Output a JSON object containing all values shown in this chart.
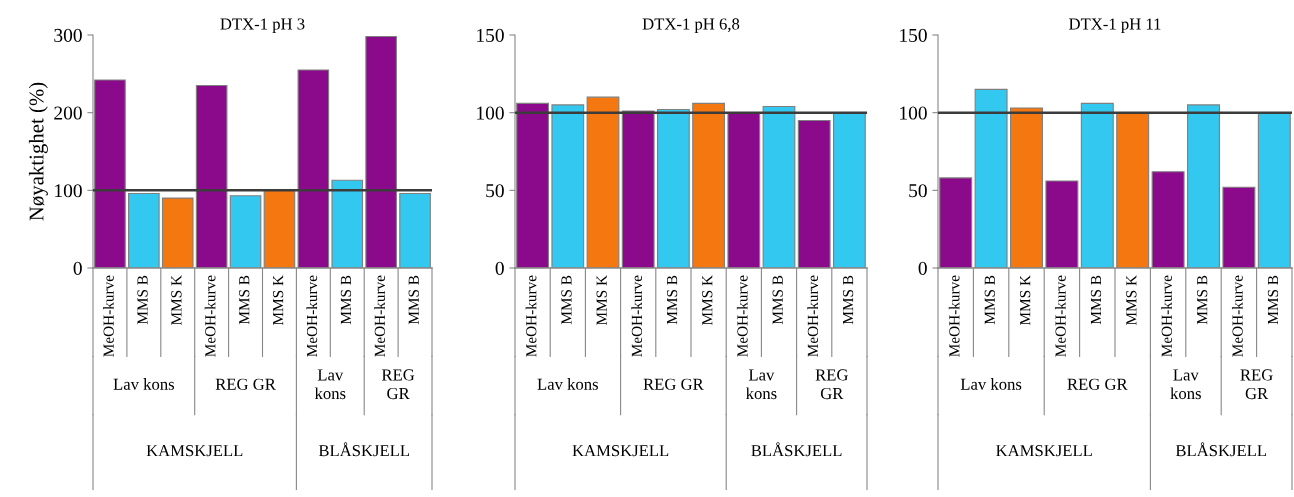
{
  "chart_data": [
    {
      "type": "bar",
      "title": "DTX-1 pH 3",
      "ylabel": "Nøyaktighet (%)",
      "categories": [
        "MeOH-kurve",
        "MMS B",
        "MMS K",
        "MeOH-kurve",
        "MMS B",
        "MMS K",
        "MeOH-kurve",
        "MMS B",
        "MeOH-kurve",
        "MMS B"
      ],
      "values": [
        242,
        96,
        90,
        235,
        93,
        100,
        255,
        113,
        298,
        96
      ],
      "colors": [
        "#8b0a8b",
        "#33c8f0",
        "#f5770f",
        "#8b0a8b",
        "#33c8f0",
        "#f5770f",
        "#8b0a8b",
        "#33c8f0",
        "#8b0a8b",
        "#33c8f0"
      ],
      "ylim": [
        0,
        300
      ],
      "yticks": [
        0,
        100,
        200,
        300
      ],
      "ref_lines": [
        {
          "axis": "y",
          "value": 100,
          "color": "#3c3c3c"
        }
      ],
      "annotations": [
        "Lav kons",
        "REG GR",
        "Lav\nkons",
        "REG\nGR",
        "KAMSKJELL",
        "BLÅSKJELL"
      ]
    },
    {
      "type": "bar",
      "title": "DTX-1 pH 6,8",
      "categories": [
        "MeOH-kurve",
        "MMS B",
        "MMS K",
        "MeOH-kurve",
        "MMS B",
        "MMS K",
        "MeOH-kurve",
        "MMS B",
        "MeOH-kurve",
        "MMS B"
      ],
      "values": [
        106,
        105,
        110,
        101,
        102,
        106,
        100,
        104,
        95,
        100
      ],
      "colors": [
        "#8b0a8b",
        "#33c8f0",
        "#f5770f",
        "#8b0a8b",
        "#33c8f0",
        "#f5770f",
        "#8b0a8b",
        "#33c8f0",
        "#8b0a8b",
        "#33c8f0"
      ],
      "ylim": [
        0,
        150
      ],
      "yticks": [
        0,
        50,
        100,
        150
      ],
      "ref_lines": [
        {
          "axis": "y",
          "value": 100,
          "color": "#3c3c3c"
        }
      ],
      "annotations": [
        "Lav kons",
        "REG GR",
        "Lav\nkons",
        "REG\nGR",
        "KAMSKJELL",
        "BLÅSKJELL"
      ]
    },
    {
      "type": "bar",
      "title": "DTX-1 pH 11",
      "categories": [
        "MeOH-kurve",
        "MMS B",
        "MMS K",
        "MeOH-kurve",
        "MMS B",
        "MMS K",
        "MeOH-kurve",
        "MMS B",
        "MeOH-kurve",
        "MMS B"
      ],
      "values": [
        58,
        115,
        103,
        56,
        106,
        100,
        62,
        105,
        52,
        100
      ],
      "colors": [
        "#8b0a8b",
        "#33c8f0",
        "#f5770f",
        "#8b0a8b",
        "#33c8f0",
        "#f5770f",
        "#8b0a8b",
        "#33c8f0",
        "#8b0a8b",
        "#33c8f0"
      ],
      "ylim": [
        0,
        150
      ],
      "yticks": [
        0,
        50,
        100,
        150
      ],
      "ref_lines": [
        {
          "axis": "y",
          "value": 100,
          "color": "#3c3c3c"
        }
      ],
      "annotations": [
        "Lav kons",
        "REG GR",
        "Lav\nkons",
        "REG\nGR",
        "KAMSKJELL",
        "BLÅSKJELL"
      ]
    }
  ]
}
